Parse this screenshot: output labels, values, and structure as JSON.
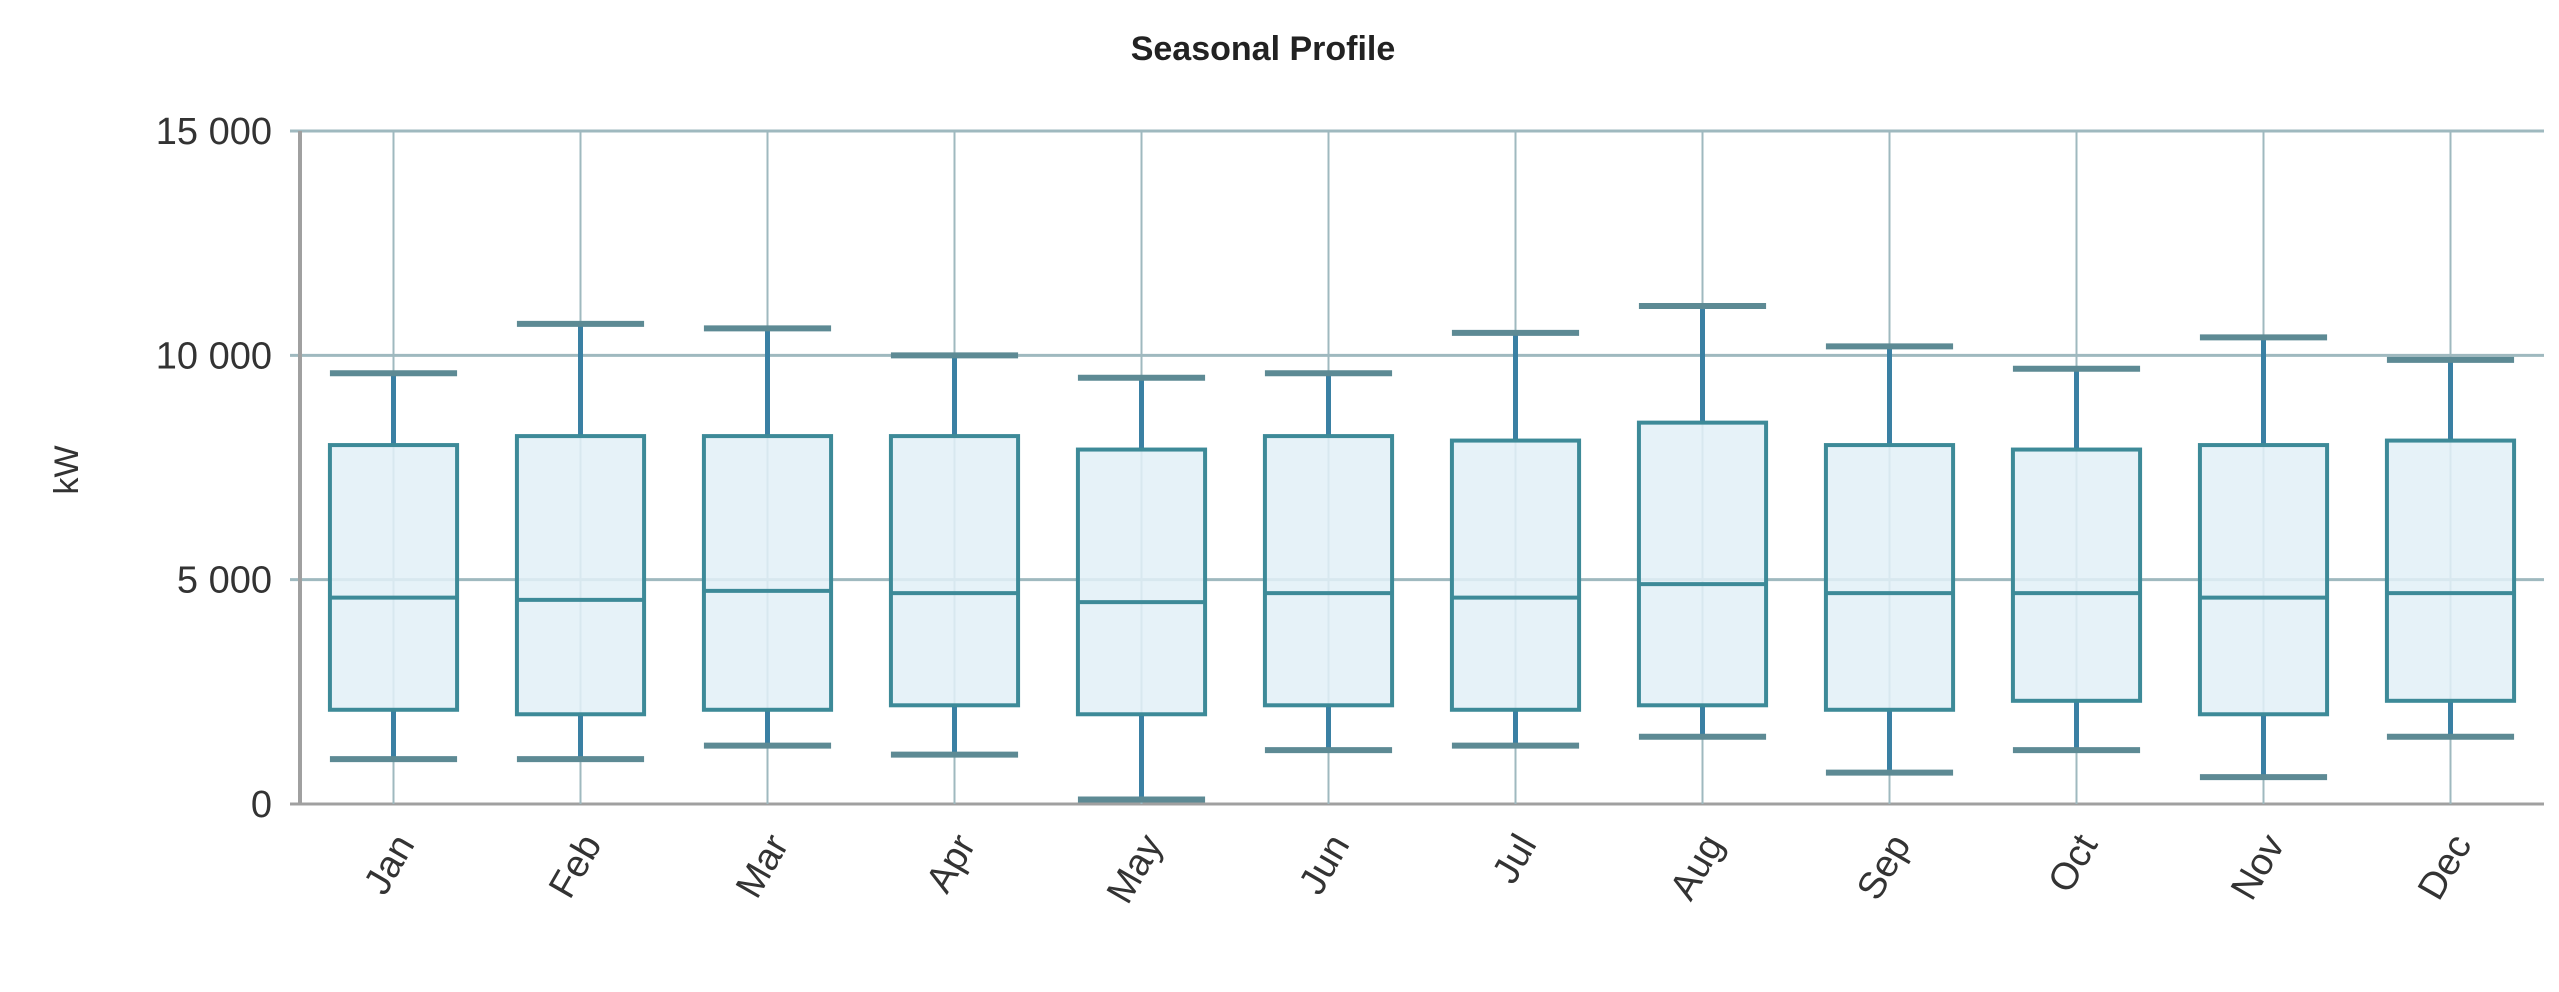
{
  "chart_data": {
    "type": "boxplot",
    "title": "Seasonal Profile",
    "xlabel": "",
    "ylabel": "kW",
    "ylim": [
      0,
      15000
    ],
    "yticks": [
      0,
      5000,
      10000,
      15000
    ],
    "ytick_labels": [
      "0",
      "5 000",
      "10 000",
      "15 000"
    ],
    "grid": true,
    "categories": [
      "Jan",
      "Feb",
      "Mar",
      "Apr",
      "May",
      "Jun",
      "Jul",
      "Aug",
      "Sep",
      "Oct",
      "Nov",
      "Dec"
    ],
    "series": [
      {
        "name": "kW",
        "min": [
          1000,
          1000,
          1300,
          1100,
          100,
          1200,
          1300,
          1500,
          700,
          1200,
          600,
          1500
        ],
        "q1": [
          2100,
          2000,
          2100,
          2200,
          2000,
          2200,
          2100,
          2200,
          2100,
          2300,
          2000,
          2300
        ],
        "median": [
          4600,
          4550,
          4750,
          4700,
          4500,
          4700,
          4600,
          4900,
          4700,
          4700,
          4600,
          4700
        ],
        "q3": [
          8000,
          8200,
          8200,
          8200,
          7900,
          8200,
          8100,
          8500,
          8000,
          7900,
          8000,
          8100
        ],
        "max": [
          9600,
          10700,
          10600,
          10000,
          9500,
          9600,
          10500,
          11100,
          10200,
          9700,
          10400,
          9900
        ]
      }
    ],
    "colors": {
      "box_fill": "#e2f0f7",
      "box_stroke": "#3d8a98",
      "whisker": "#3a80a3",
      "cap": "#5d8a94",
      "grid": "#9fb9bf",
      "axis": "#a0a0a0"
    }
  }
}
